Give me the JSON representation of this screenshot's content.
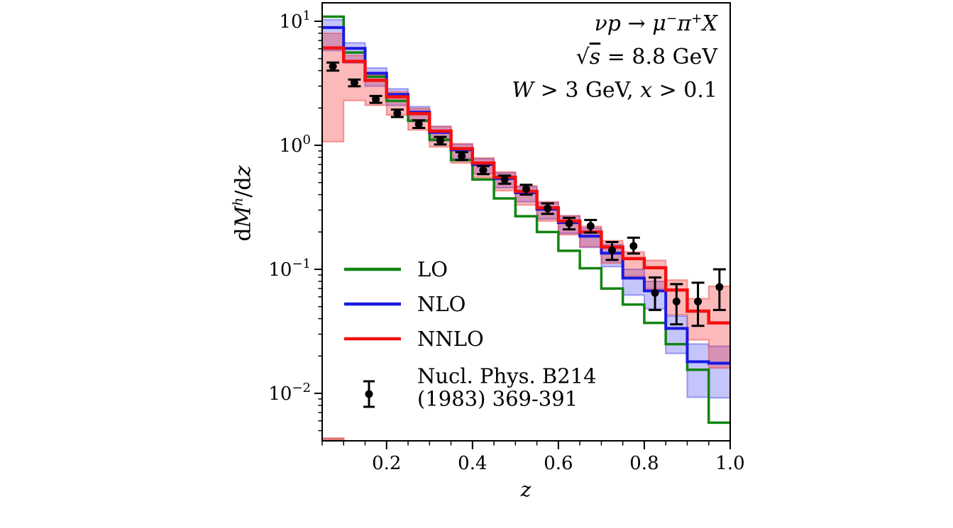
{
  "figure": {
    "background": "#ffffff"
  },
  "chart_data": {
    "type": "bar",
    "subtype": "step-histogram-with-bands-and-errorbars",
    "xlabel": "z",
    "ylabel_parts": [
      {
        "t": "d",
        "i": 0
      },
      {
        "t": "M",
        "i": 1
      },
      {
        "t": "h",
        "i": 1,
        "s": 1
      },
      {
        "t": "/d",
        "i": 0
      },
      {
        "t": "z",
        "i": 1
      }
    ],
    "annotations": [
      {
        "parts": [
          {
            "t": "νp",
            "i": 1
          },
          {
            "t": " → ",
            "i": 0
          },
          {
            "t": "μ",
            "i": 1
          },
          {
            "t": "−",
            "s": 1
          },
          {
            "t": "π",
            "i": 1
          },
          {
            "t": "+",
            "s": 1
          },
          {
            "t": "X",
            "i": 1
          }
        ]
      },
      {
        "parts": [
          {
            "t": "√",
            "i": 0
          },
          {
            "t": "s",
            "i": 1,
            "o": 1
          },
          {
            "t": " = 8.8 GeV",
            "i": 0
          }
        ]
      },
      {
        "parts": [
          {
            "t": "W",
            "i": 1
          },
          {
            "t": " > 3 GeV, ",
            "i": 0
          },
          {
            "t": "x",
            "i": 1
          },
          {
            "t": " > 0.1",
            "i": 0
          }
        ]
      }
    ],
    "x_axis": {
      "min": 0.05,
      "max": 1.0,
      "major_ticks": [
        0.2,
        0.4,
        0.6,
        0.8,
        1.0
      ],
      "major_labels": [
        "0.2",
        "0.4",
        "0.6",
        "0.8",
        "1.0"
      ],
      "minor_step": 0.05
    },
    "y_axis": {
      "scale": "log",
      "min": 0.00414,
      "max": 14.08,
      "major_ticks": [
        10,
        1,
        0.1,
        0.01
      ],
      "major_labels": [
        {
          "mant": "10",
          "exp": "1"
        },
        {
          "mant": "10",
          "exp": "0"
        },
        {
          "mant": "10",
          "exp": "−1"
        },
        {
          "mant": "10",
          "exp": "−2"
        }
      ]
    },
    "bin_edges": [
      0.05,
      0.1,
      0.15,
      0.2,
      0.25,
      0.3,
      0.35,
      0.4,
      0.45,
      0.5,
      0.55,
      0.6,
      0.65,
      0.7,
      0.75,
      0.8,
      0.85,
      0.9,
      0.95,
      1.0
    ],
    "series": [
      {
        "name": "LO",
        "color": "#128412",
        "linewidth": 3.5,
        "values": [
          10.9,
          5.6,
          3.57,
          2.28,
          1.58,
          1.11,
          0.76,
          0.53,
          0.373,
          0.268,
          0.2,
          0.141,
          0.102,
          0.07,
          0.052,
          0.037,
          0.0249,
          0.0155,
          0.0058
        ]
      },
      {
        "name": "NLO",
        "color": "#1a1ae0",
        "linewidth": 4,
        "band_fill": "rgba(45,45,240,0.28)",
        "band_edge": "rgba(45,45,240,0.42)",
        "values": [
          8.9,
          6.05,
          3.81,
          2.57,
          1.85,
          1.27,
          0.92,
          0.7,
          0.54,
          0.415,
          0.305,
          0.238,
          0.185,
          0.135,
          0.085,
          0.067,
          0.0334,
          0.018,
          0.0175
        ],
        "band_lo": [
          5.8,
          4.6,
          3.0,
          2.1,
          1.55,
          1.08,
          0.78,
          0.59,
          0.455,
          0.35,
          0.255,
          0.195,
          0.15,
          0.105,
          0.062,
          0.048,
          0.021,
          0.0093,
          0.0092
        ],
        "band_hi": [
          10.3,
          6.7,
          4.2,
          2.85,
          2.05,
          1.42,
          1.02,
          0.78,
          0.6,
          0.465,
          0.345,
          0.27,
          0.215,
          0.158,
          0.1,
          0.08,
          0.042,
          0.025,
          0.024
        ]
      },
      {
        "name": "NNLO",
        "color": "#f31010",
        "linewidth": 4.5,
        "band_fill": "rgba(246,42,42,0.33)",
        "band_edge": "rgba(235,70,70,0.5)",
        "values": [
          6.1,
          4.75,
          3.34,
          2.46,
          1.8,
          1.3,
          0.94,
          0.72,
          0.553,
          0.425,
          0.313,
          0.245,
          0.2,
          0.151,
          0.122,
          0.103,
          0.068,
          0.046,
          0.037
        ],
        "band_lo": [
          1.07,
          2.3,
          2.1,
          1.75,
          1.33,
          0.97,
          0.72,
          0.55,
          0.43,
          0.33,
          0.245,
          0.19,
          0.152,
          0.112,
          0.088,
          0.07,
          0.043,
          0.027,
          0.016
        ],
        "band_hi": [
          8.0,
          5.3,
          3.7,
          2.7,
          1.98,
          1.42,
          1.03,
          0.79,
          0.61,
          0.47,
          0.35,
          0.27,
          0.222,
          0.17,
          0.138,
          0.118,
          0.082,
          0.058,
          0.073
        ]
      }
    ],
    "data_points": {
      "color": "#000000",
      "z": [
        0.075,
        0.125,
        0.175,
        0.225,
        0.275,
        0.325,
        0.375,
        0.425,
        0.475,
        0.525,
        0.575,
        0.625,
        0.675,
        0.725,
        0.775,
        0.825,
        0.875,
        0.925,
        0.975
      ],
      "y": [
        4.33,
        3.2,
        2.35,
        1.81,
        1.48,
        1.09,
        0.82,
        0.63,
        0.53,
        0.444,
        0.31,
        0.235,
        0.223,
        0.142,
        0.154,
        0.0646,
        0.055,
        0.055,
        0.072
      ],
      "err_lo": [
        0.33,
        0.21,
        0.15,
        0.12,
        0.1,
        0.075,
        0.06,
        0.045,
        0.04,
        0.044,
        0.03,
        0.025,
        0.025,
        0.023,
        0.02,
        0.0176,
        0.019,
        0.02,
        0.025
      ],
      "err_hi": [
        0.32,
        0.19,
        0.15,
        0.13,
        0.11,
        0.08,
        0.06,
        0.05,
        0.04,
        0.036,
        0.03,
        0.025,
        0.027,
        0.024,
        0.026,
        0.0214,
        0.021,
        0.023,
        0.028
      ]
    },
    "stray_segment": {
      "z0": 0.05,
      "z1": 0.102,
      "v": 0.0043,
      "color": "rgba(222,75,75,0.8)",
      "width": 3.5
    },
    "legend": {
      "entries": [
        {
          "label": "LO"
        },
        {
          "label": "NLO"
        },
        {
          "label": "NNLO"
        }
      ],
      "ref": {
        "line1": "Nucl. Phys. B214",
        "line2": "(1983) 369-391"
      }
    }
  }
}
